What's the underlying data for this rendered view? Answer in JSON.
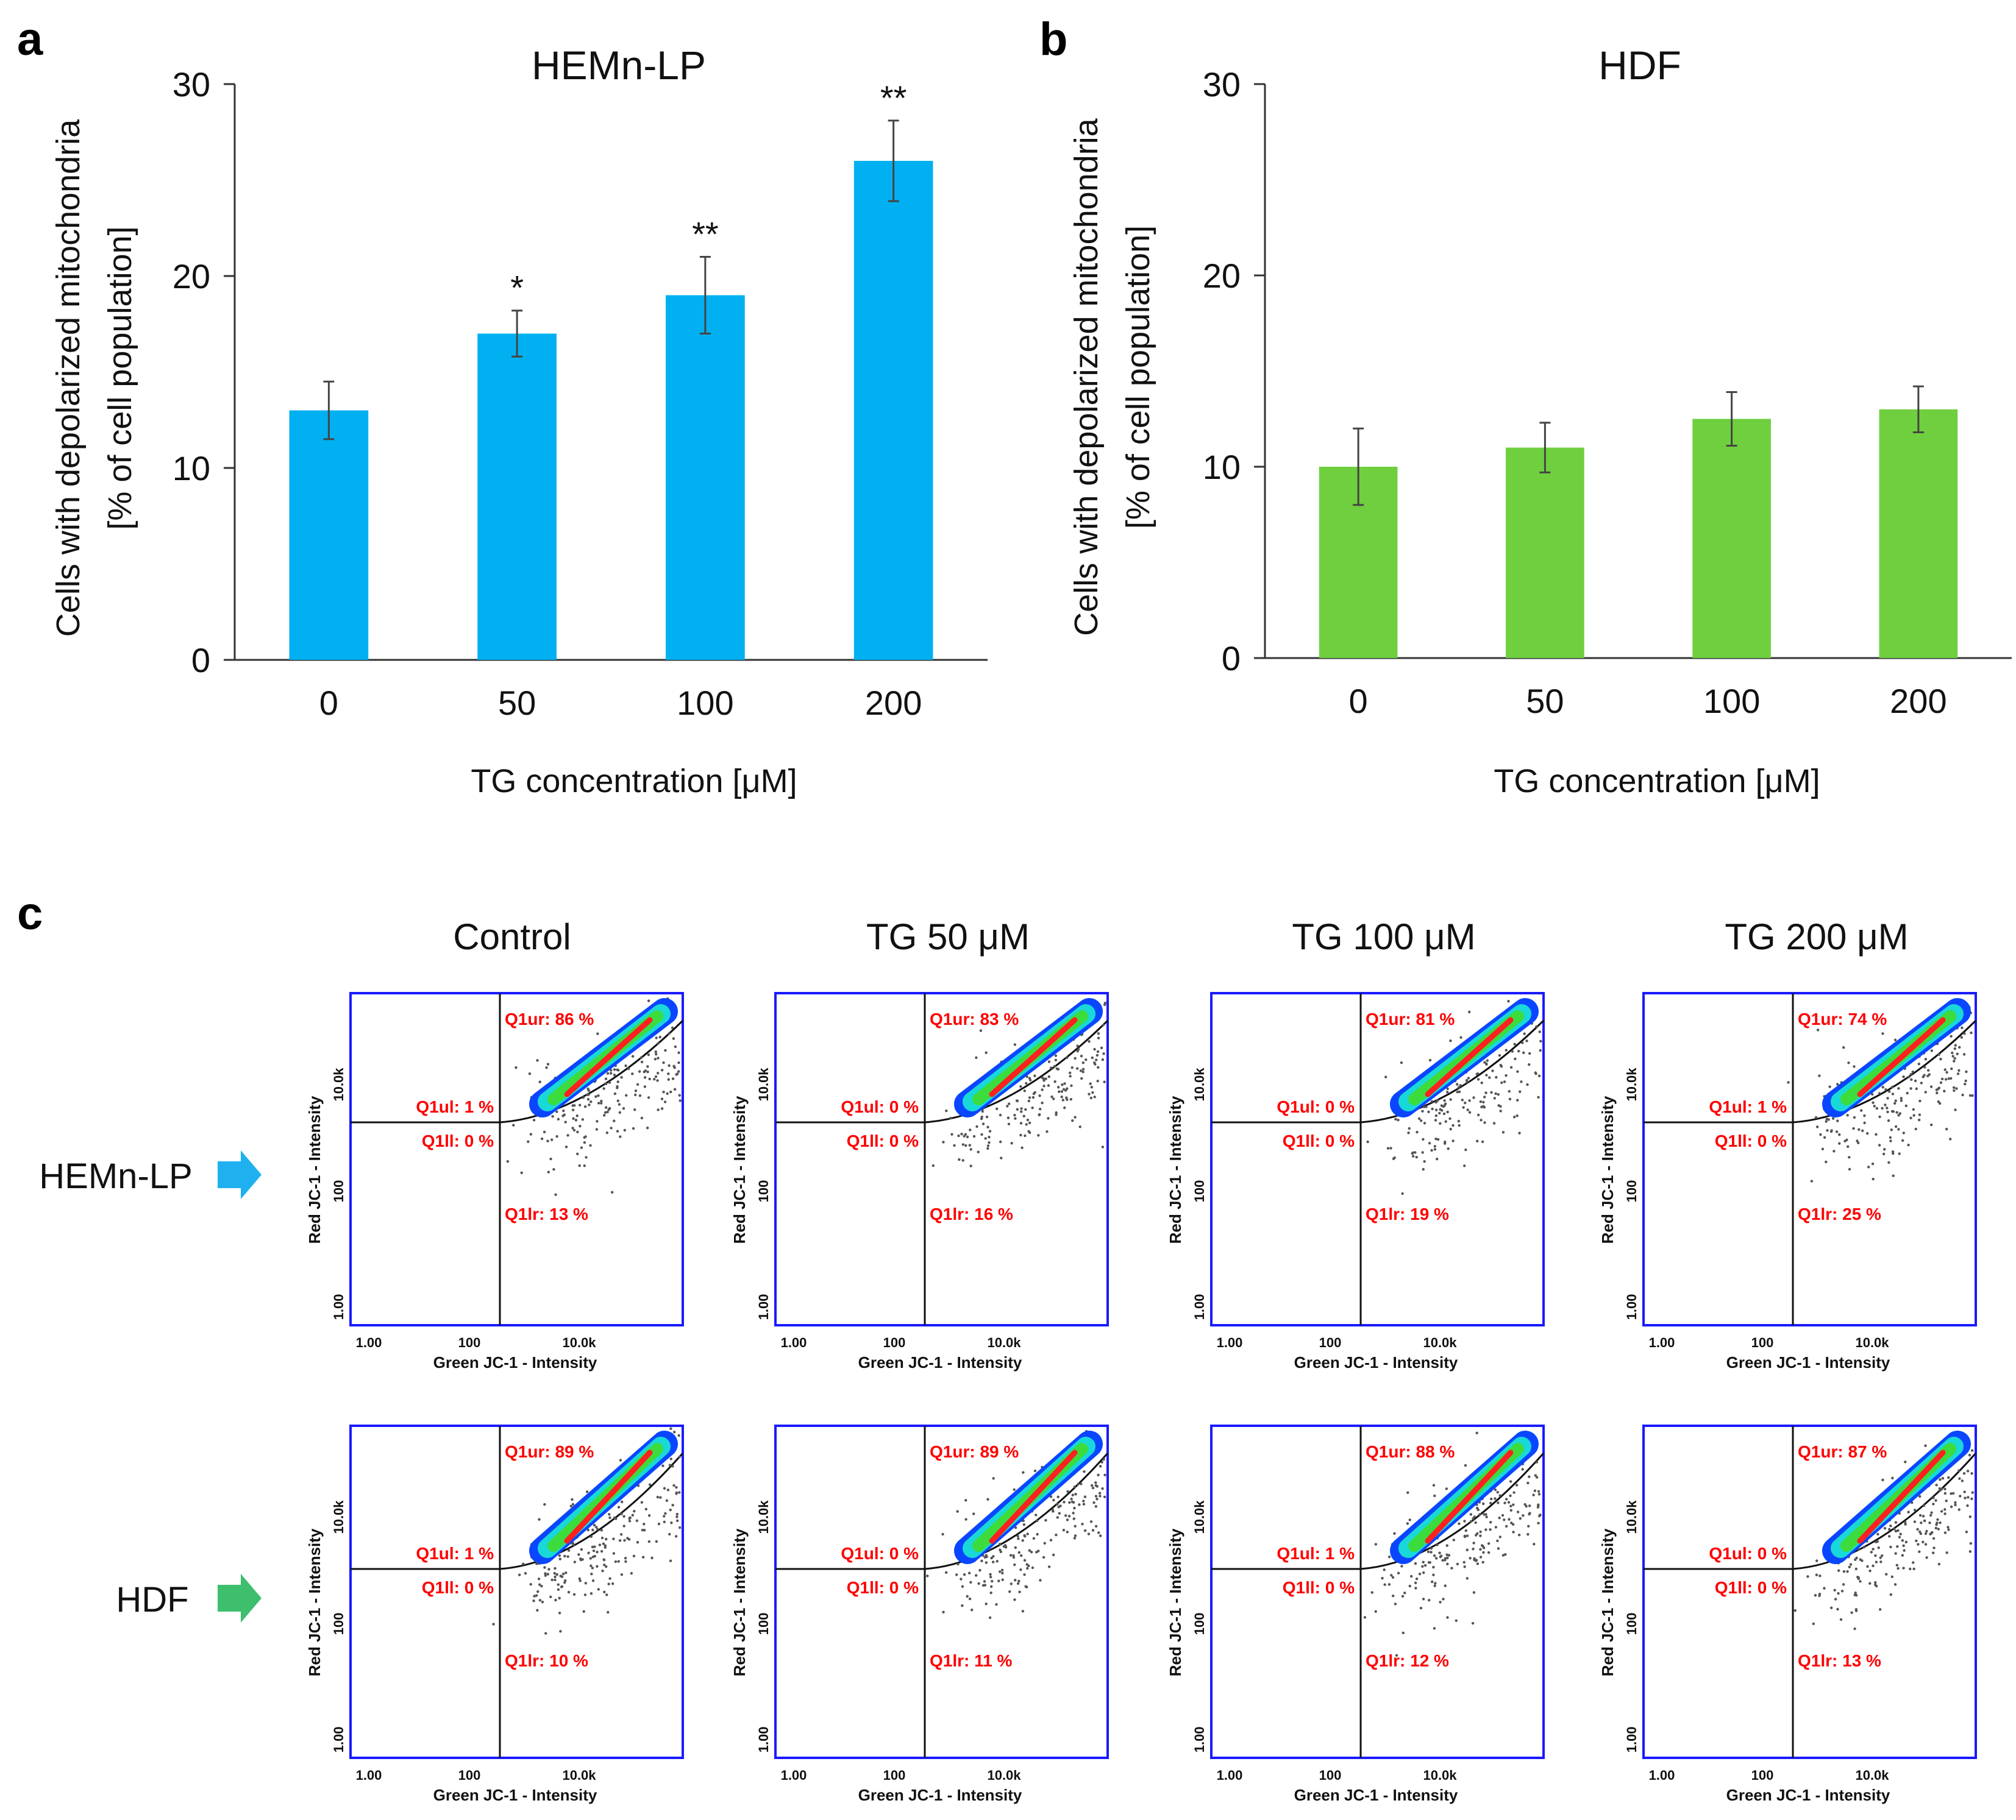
{
  "panels": {
    "a": "a",
    "b": "b",
    "c": "c"
  },
  "colors": {
    "hemn_bar": "#00b0f0",
    "hdf_bar": "#6fcf3f",
    "hemn_arrow": "#1fb1ef",
    "hdf_arrow": "#3dbf6d",
    "plot_border": "#1a1aff",
    "quadrant_text": "#ff0000"
  },
  "chart_data": [
    {
      "type": "bar",
      "panel": "a",
      "title": "HEMn-LP",
      "categories": [
        "0",
        "50",
        "100",
        "200"
      ],
      "values": [
        13,
        17,
        19,
        26
      ],
      "errors": [
        1.5,
        1.2,
        2.0,
        2.1
      ],
      "significance": [
        "",
        "*",
        "**",
        "**"
      ],
      "xlabel": "TG concentration [μM]",
      "ylabel": [
        "Cells with depolarized mitochondria",
        "[% of cell population]"
      ],
      "ylim": [
        0,
        30
      ],
      "yticks": [
        "0",
        "10",
        "20",
        "30"
      ],
      "grid": false
    },
    {
      "type": "bar",
      "panel": "b",
      "title": "HDF",
      "categories": [
        "0",
        "50",
        "100",
        "200"
      ],
      "values": [
        10,
        11,
        12.5,
        13
      ],
      "errors": [
        2.0,
        1.3,
        1.4,
        1.2
      ],
      "significance": [
        "",
        "",
        "",
        ""
      ],
      "xlabel": "TG concentration [μM]",
      "ylabel": [
        "Cells with depolarized mitochondria",
        "[% of cell population]"
      ],
      "ylim": [
        0,
        30
      ],
      "yticks": [
        "0",
        "10",
        "20",
        "30"
      ],
      "grid": false
    }
  ],
  "flow": {
    "columns": [
      "Control",
      "TG 50 μM",
      "TG 100 μM",
      "TG 200 μM"
    ],
    "rows": [
      "HEMn-LP",
      "HDF"
    ],
    "x_axis_label": "Green JC-1 - Intensity",
    "y_axis_label": "Red JC-1 - Intensity",
    "x_ticks": [
      "1.00",
      "100",
      "10.0k"
    ],
    "y_ticks": [
      "1.00",
      "100",
      "10.0k"
    ],
    "quadrant_names": [
      "Q1ur",
      "Q1ul",
      "Q1ll",
      "Q1lr"
    ],
    "plots": [
      [
        {
          "ur": "Q1ur: 86 %",
          "ul": "Q1ul: 1 %",
          "ll": "Q1ll: 0 %",
          "lr": "Q1lr: 13 %"
        },
        {
          "ur": "Q1ur: 83 %",
          "ul": "Q1ul: 0 %",
          "ll": "Q1ll: 0 %",
          "lr": "Q1lr: 16 %"
        },
        {
          "ur": "Q1ur: 81 %",
          "ul": "Q1ul: 0 %",
          "ll": "Q1ll: 0 %",
          "lr": "Q1lr: 19 %"
        },
        {
          "ur": "Q1ur: 74 %",
          "ul": "Q1ul: 1 %",
          "ll": "Q1ll: 0 %",
          "lr": "Q1lr: 25 %"
        }
      ],
      [
        {
          "ur": "Q1ur: 89 %",
          "ul": "Q1ul: 1 %",
          "ll": "Q1ll: 0 %",
          "lr": "Q1lr: 10 %"
        },
        {
          "ur": "Q1ur: 89 %",
          "ul": "Q1ul: 0 %",
          "ll": "Q1ll: 0 %",
          "lr": "Q1lr: 11 %"
        },
        {
          "ur": "Q1ur: 88 %",
          "ul": "Q1ul: 1 %",
          "ll": "Q1ll: 0 %",
          "lr": "Q1lr: 12 %"
        },
        {
          "ur": "Q1ur: 87 %",
          "ul": "Q1ul: 0 %",
          "ll": "Q1ll: 0 %",
          "lr": "Q1lr: 13 %"
        }
      ]
    ]
  }
}
